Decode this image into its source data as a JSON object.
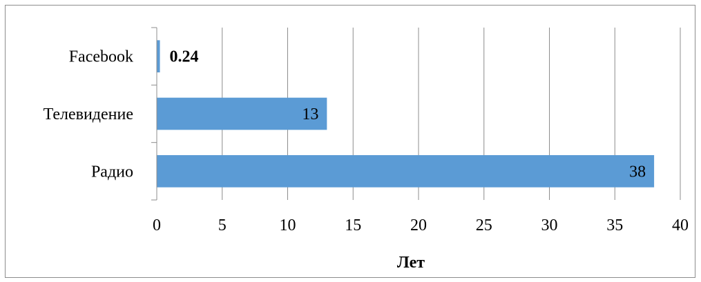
{
  "chart_data": {
    "type": "bar",
    "orientation": "horizontal",
    "categories": [
      "Facebook",
      "Телевидение",
      "Радио"
    ],
    "values": [
      0.24,
      13,
      38
    ],
    "data_labels": [
      "0.24",
      "13",
      "38"
    ],
    "xlabel": "Лет",
    "ylabel": "",
    "xlim": [
      0,
      40
    ],
    "x_ticks": [
      0,
      5,
      10,
      15,
      20,
      25,
      30,
      35,
      40
    ],
    "grid": "vertical",
    "legend": "none",
    "bar_color": "#5b9bd5",
    "grid_color": "#8c8c8c"
  }
}
